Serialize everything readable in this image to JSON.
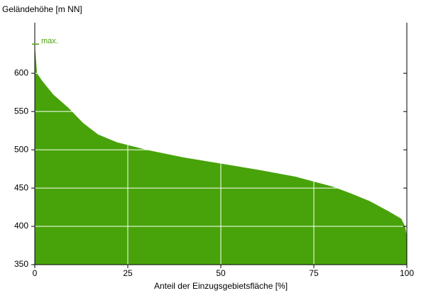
{
  "chart_data": {
    "type": "area",
    "y_label": "Geländehöhe [m NN]",
    "x_label": "Anteil der Einzugsgebietsfläche [%]",
    "annotation": "max.",
    "max_value": 638,
    "color": "#48a30a",
    "x": [
      0,
      0.6,
      2,
      5,
      9,
      13,
      17,
      22,
      30,
      40,
      50,
      60,
      70,
      80,
      85,
      90,
      95,
      98.5,
      99.5,
      100
    ],
    "values": [
      638,
      600,
      590,
      572,
      555,
      535,
      520,
      510,
      500,
      490,
      482,
      474,
      465,
      452,
      443,
      433,
      420,
      410,
      400,
      388
    ],
    "xlim": [
      0,
      100
    ],
    "xticks": [
      0,
      25,
      50,
      75,
      100
    ],
    "ylim": [
      350,
      666
    ],
    "yticks": [
      350,
      400,
      450,
      500,
      550,
      600
    ],
    "grid": true
  }
}
